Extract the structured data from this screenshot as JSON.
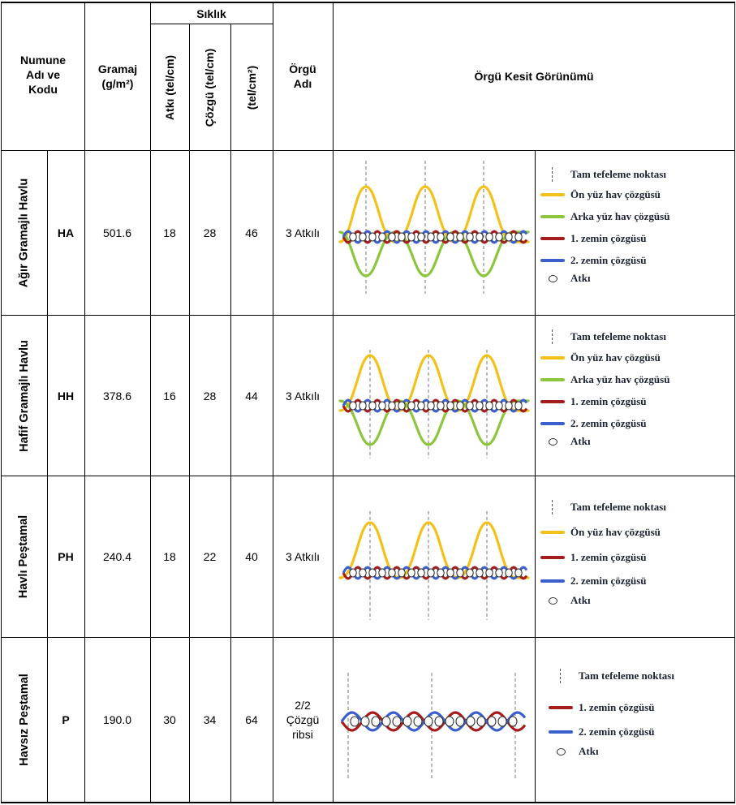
{
  "header": {
    "sample": "Numune Adı ve Kodu",
    "gramaj": "Gramaj",
    "gramaj_unit": "(g/m²)",
    "siklik": "Sıklık",
    "atki": "Atkı (tel/cm)",
    "cozgu": "Çözgü (tel/cm)",
    "total": "(tel/cm²)",
    "orgu_adi": "Örgü Adı",
    "kesit": "Örgü Kesit Görünümü"
  },
  "rows": [
    {
      "name": "Ağır Gramajlı Havlu",
      "code": "HA",
      "gramaj": "501.6",
      "atki": "18",
      "cozgu": "28",
      "total": "46",
      "orgu": "3 Atkılı"
    },
    {
      "name": "Hafif Gramajlı Havlu",
      "code": "HH",
      "gramaj": "378.6",
      "atki": "16",
      "cozgu": "28",
      "total": "44",
      "orgu": "3 Atkılı"
    },
    {
      "name": "Havlı Peştamal",
      "code": "PH",
      "gramaj": "240.4",
      "atki": "18",
      "cozgu": "22",
      "total": "40",
      "orgu": "3 Atkılı"
    },
    {
      "name": "Havsız Peştamal",
      "code": "P",
      "gramaj": "190.0",
      "atki": "30",
      "cozgu": "34",
      "total": "64",
      "orgu": "2/2 Çözgü ribsi"
    }
  ],
  "legend": {
    "tefeleme": "Tam tefeleme noktası",
    "on_yuz": "Ön yüz hav çözgüsü",
    "arka_yuz": "Arka yüz hav çözgüsü",
    "zemin1": "1. zemin çözgüsü",
    "zemin2": "2. zemin çözgüsü",
    "atki": "Atkı"
  },
  "colors": {
    "on_yuz": "#f2c21b",
    "arka_yuz": "#8cc63f",
    "zemin1": "#a51c1c",
    "zemin2": "#3a5fcd"
  }
}
